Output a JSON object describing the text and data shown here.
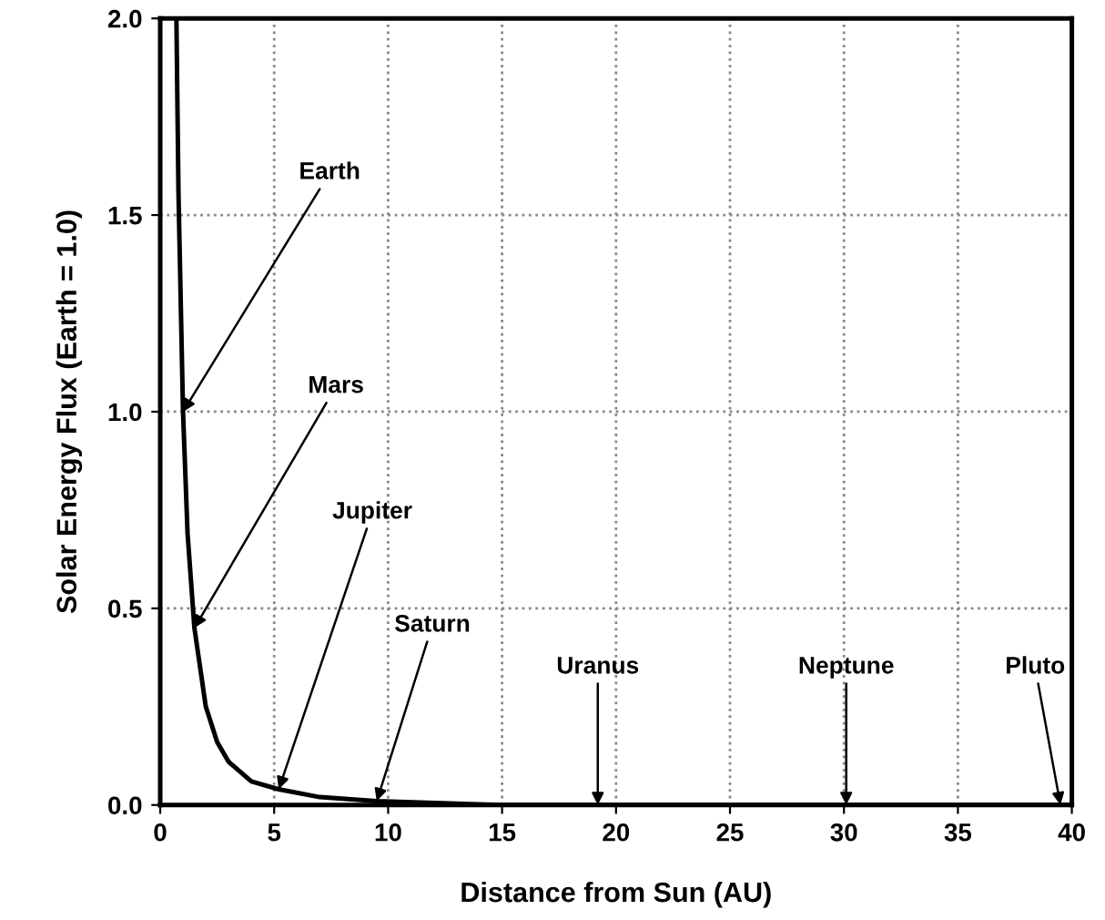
{
  "chart_data": {
    "type": "line",
    "xlabel": "Distance from Sun (AU)",
    "ylabel": "Solar Energy Flux (Earth = 1.0)",
    "x": [
      0.71,
      0.8,
      1.0,
      1.2,
      1.5,
      2,
      2.5,
      3,
      4,
      5.2,
      7,
      9.5,
      15,
      20,
      30,
      40
    ],
    "series": [
      {
        "color": "#000000",
        "values": [
          2.0,
          1.56,
          1.0,
          0.69,
          0.45,
          0.25,
          0.16,
          0.11,
          0.06,
          0.04,
          0.02,
          0.01,
          0.0,
          0.0,
          0.0,
          0.0
        ]
      }
    ],
    "xlim": [
      0,
      40
    ],
    "ylim": [
      0,
      2.0
    ],
    "xticks": [
      0,
      5,
      10,
      15,
      20,
      25,
      30,
      35,
      40
    ],
    "yticks": [
      {
        "value": 0,
        "label": "0.0"
      },
      0.5,
      {
        "value": 1,
        "label": "1.0"
      },
      1.5,
      {
        "value": 2,
        "label": "2.0"
      }
    ],
    "grid": true,
    "marker": "none",
    "line_style": "solid",
    "annotations": [
      {
        "text": "Earth",
        "x": 1.0,
        "y": 1.0
      },
      {
        "text": "Mars",
        "x": 1.5,
        "y": 0.45
      },
      {
        "text": "Jupiter",
        "x": 5.2,
        "y": 0.04
      },
      {
        "text": "Saturn",
        "x": 9.5,
        "y": 0.01
      },
      {
        "text": "Uranus",
        "x": 19.2,
        "y": 0.0
      },
      {
        "text": "Neptune",
        "x": 30.1,
        "y": 0.0
      },
      {
        "text": "Pluto",
        "x": 39.5,
        "y": 0.0
      }
    ]
  }
}
